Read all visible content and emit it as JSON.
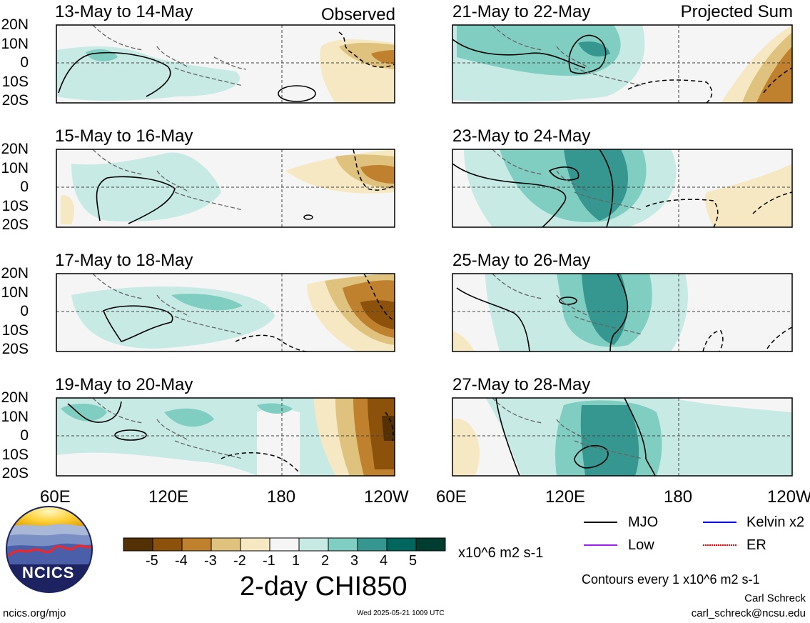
{
  "panels": {
    "left": [
      {
        "title": "13-May to 14-May",
        "tag": "Observed"
      },
      {
        "title": "15-May to 16-May",
        "tag": ""
      },
      {
        "title": "17-May to 18-May",
        "tag": ""
      },
      {
        "title": "19-May to 20-May",
        "tag": ""
      }
    ],
    "right": [
      {
        "title": "21-May to 22-May",
        "tag": "Projected Sum"
      },
      {
        "title": "23-May to 24-May",
        "tag": ""
      },
      {
        "title": "25-May to 26-May",
        "tag": ""
      },
      {
        "title": "27-May to 28-May",
        "tag": ""
      }
    ]
  },
  "lat_labels": [
    "20N",
    "10N",
    "0",
    "10S",
    "20S"
  ],
  "lon_labels": [
    "60E",
    "120E",
    "180",
    "120W"
  ],
  "colorbar": {
    "ticks": [
      "-5",
      "-4",
      "-3",
      "-2",
      "-1",
      "1",
      "2",
      "3",
      "4",
      "5"
    ],
    "colors": [
      "#543005",
      "#8c510a",
      "#bf812d",
      "#dfc27d",
      "#f6e8c3",
      "#f5f5f5",
      "#c7eae5",
      "#80cdc1",
      "#35978f",
      "#01665e",
      "#003c30"
    ],
    "units": "x10^6 m2 s-1"
  },
  "main_title": "2-day CHI850",
  "legend": {
    "mjo": "MJO",
    "kelvin": "Kelvin x2",
    "low": "Low",
    "er": "ER",
    "colors": {
      "mjo": "#000000",
      "kelvin": "#0000ff",
      "low": "#a020f0",
      "er": "#ff0000"
    }
  },
  "contours_note": "Contours every 1 x10^6 m2 s-1",
  "author": "Carl Schreck",
  "email": "carl_schreck@ncsu.edu",
  "url": "ncics.org/mjo",
  "timestamp": "Wed 2025-05-21 1009 UTC",
  "logo_text": "NCICS"
}
